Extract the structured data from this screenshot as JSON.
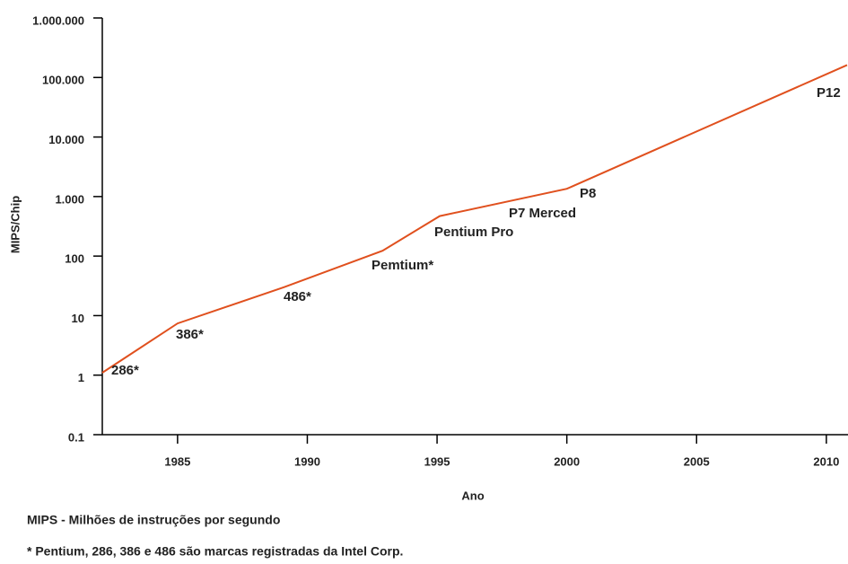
{
  "chart_data": {
    "type": "line",
    "x_label": "Ano",
    "y_label": "MIPS/Chip",
    "x": [
      1982.1,
      1985,
      1989.1,
      1992.9,
      1995.1,
      2000,
      2010.8
    ],
    "series": [
      {
        "name": "MIPS/Chip",
        "color": "#e0501e",
        "values": [
          1.1,
          7.4,
          30,
          123,
          470,
          1350,
          162000
        ]
      }
    ],
    "yscale": "log",
    "xlim": [
      1982.1,
      2010.8
    ],
    "xticks": [
      1985,
      1990,
      1995,
      2000,
      2005,
      2010
    ],
    "ylim": [
      0.1,
      1000000
    ],
    "yticks": [
      0.1,
      1,
      10,
      100,
      {
        "value": 1000,
        "label": "1.000"
      },
      {
        "value": 10000,
        "label": "10.000"
      },
      {
        "value": 100000,
        "label": "100.000"
      },
      {
        "value": 1000000,
        "label": "1.000.000"
      }
    ],
    "grid": false,
    "annotations": [
      "286*",
      "386*",
      "486*",
      "Pemtium*",
      "Pentium Pro",
      "P7 Merced",
      "P8",
      "P12"
    ],
    "notes": [
      "MIPS - Milhões de instruções por segundo",
      "* Pentium, 286, 386 e 486 são marcas registradas da Intel Corp."
    ]
  }
}
